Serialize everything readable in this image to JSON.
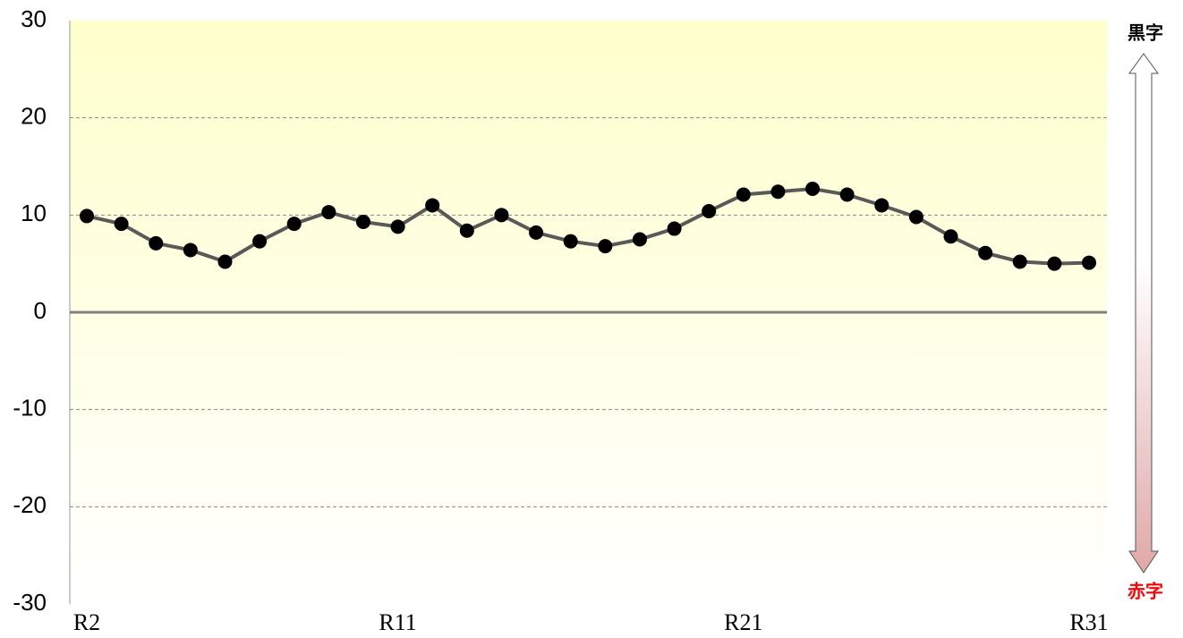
{
  "chart_data": {
    "type": "line",
    "categories": [
      "R2",
      null,
      null,
      null,
      null,
      null,
      null,
      null,
      null,
      "R11",
      null,
      null,
      null,
      null,
      null,
      null,
      null,
      null,
      null,
      "R21",
      null,
      null,
      null,
      null,
      null,
      null,
      null,
      null,
      null,
      "R31"
    ],
    "series": [
      {
        "name": null,
        "color": "#595959",
        "values": [
          9.9,
          9.1,
          7.1,
          6.4,
          5.2,
          7.3,
          9.1,
          10.3,
          9.3,
          8.8,
          11.0,
          8.4,
          10.0,
          8.2,
          7.3,
          6.8,
          7.5,
          8.6,
          10.4,
          12.1,
          12.4,
          12.7,
          12.1,
          11.0,
          9.8,
          7.8,
          6.1,
          5.2,
          5.0,
          5.1
        ]
      }
    ],
    "ylim": [
      -30,
      30
    ],
    "yticks": [
      -30,
      -20,
      -10,
      0,
      10,
      20,
      30
    ],
    "grid": true,
    "annotations": [
      {
        "text": "黒字",
        "color": "#000000"
      },
      {
        "text": "赤字",
        "color": "#ff0000"
      }
    ]
  }
}
